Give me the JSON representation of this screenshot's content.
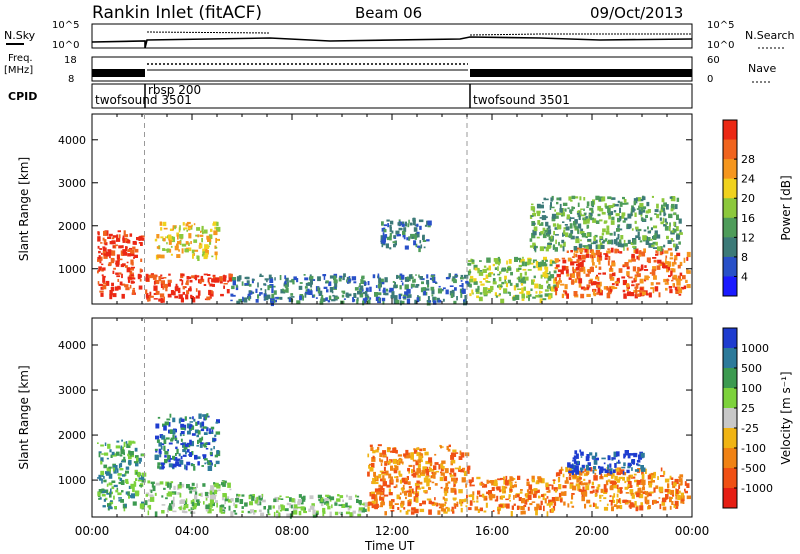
{
  "header": {
    "station": "Rankin Inlet (fitACF)",
    "beam": "Beam 06",
    "date": "09/Oct/2013"
  },
  "top_panels": {
    "nsky": {
      "left_label": "N.Sky",
      "right_label": "N.Search",
      "left_ticks": [
        "10^5",
        "10^0"
      ],
      "right_ticks": [
        "10^5",
        "10^0"
      ]
    },
    "freq": {
      "left_label_1": "Freq.",
      "left_label_2": "[MHz]",
      "right_label": "Nave",
      "left_ticks": [
        "18",
        "8"
      ],
      "right_ticks": [
        "60",
        "0"
      ]
    },
    "cpid": {
      "label": "CPID",
      "programs": [
        "twofsound 3501",
        "rbsp 200",
        "twofsound 3501"
      ],
      "boundaries_hours": [
        2.1,
        15.0
      ]
    }
  },
  "chart_data": [
    {
      "type": "heatmap",
      "name": "power",
      "xlabel": "Time UT",
      "ylabel": "Slant Range [km]",
      "xlim": [
        0,
        24
      ],
      "ylim": [
        180,
        4600
      ],
      "y_ticks": [
        1000,
        2000,
        3000,
        4000
      ],
      "x_ticks": [
        "00:00",
        "04:00",
        "08:00",
        "12:00",
        "16:00",
        "20:00",
        "00:00"
      ],
      "colorbar": {
        "label": "Power [dB]",
        "ticks": [
          "4",
          "8",
          "12",
          "16",
          "20",
          "24",
          "28"
        ],
        "colors": [
          "#1a1aff",
          "#2850c8",
          "#3c7a78",
          "#4e9c5a",
          "#8cc83c",
          "#f0d21e",
          "#f5961e",
          "#f0641e",
          "#eb2814"
        ]
      },
      "regions": [
        {
          "t": [
            0.2,
            2.0
          ],
          "r": [
            400,
            1900
          ],
          "level": 8
        },
        {
          "t": [
            2.1,
            5.5
          ],
          "r": [
            300,
            900
          ],
          "level": 8
        },
        {
          "t": [
            2.5,
            5.0
          ],
          "r": [
            1300,
            2100
          ],
          "level": 5
        },
        {
          "t": [
            5.5,
            15.0
          ],
          "r": [
            250,
            900
          ],
          "level": 2
        },
        {
          "t": [
            11.5,
            13.5
          ],
          "r": [
            1500,
            2200
          ],
          "level": 2
        },
        {
          "t": [
            15.0,
            18.5
          ],
          "r": [
            300,
            1300
          ],
          "level": 4
        },
        {
          "t": [
            18.5,
            23.8
          ],
          "r": [
            400,
            1500
          ],
          "level": 7
        },
        {
          "t": [
            17.5,
            23.5
          ],
          "r": [
            1500,
            2700
          ],
          "level": 3
        }
      ]
    },
    {
      "type": "heatmap",
      "name": "velocity",
      "xlabel": "Time UT",
      "ylabel": "Slant Range [km]",
      "xlim": [
        0,
        24
      ],
      "ylim": [
        180,
        4600
      ],
      "y_ticks": [
        1000,
        2000,
        3000,
        4000
      ],
      "x_ticks": [
        "00:00",
        "04:00",
        "08:00",
        "12:00",
        "16:00",
        "20:00",
        "00:00"
      ],
      "colorbar": {
        "label": "Velocity [m s⁻¹]",
        "ticks": [
          "1000",
          "500",
          "100",
          "25",
          "-25",
          "-100",
          "-500",
          "-1000"
        ],
        "colors": [
          "#1e3ccf",
          "#2c7a9a",
          "#3c9a50",
          "#7dd23c",
          "#c8c8c8",
          "#f0b414",
          "#f08214",
          "#f05014",
          "#e61e14"
        ]
      },
      "regions": [
        {
          "t": [
            0.2,
            2.0
          ],
          "r": [
            400,
            1900
          ],
          "level": 2
        },
        {
          "t": [
            2.1,
            5.5
          ],
          "r": [
            300,
            1000
          ],
          "level": 3
        },
        {
          "t": [
            2.5,
            5.0
          ],
          "r": [
            1300,
            2500
          ],
          "level": 1
        },
        {
          "t": [
            5.5,
            11.0
          ],
          "r": [
            250,
            700
          ],
          "level": 3
        },
        {
          "t": [
            11.0,
            15.0
          ],
          "r": [
            300,
            1800
          ],
          "level": 6
        },
        {
          "t": [
            15.0,
            18.5
          ],
          "r": [
            300,
            1100
          ],
          "level": 6
        },
        {
          "t": [
            18.5,
            23.8
          ],
          "r": [
            400,
            1300
          ],
          "level": 6
        },
        {
          "t": [
            19.0,
            22.0
          ],
          "r": [
            1200,
            1700
          ],
          "level": 0
        }
      ]
    }
  ]
}
